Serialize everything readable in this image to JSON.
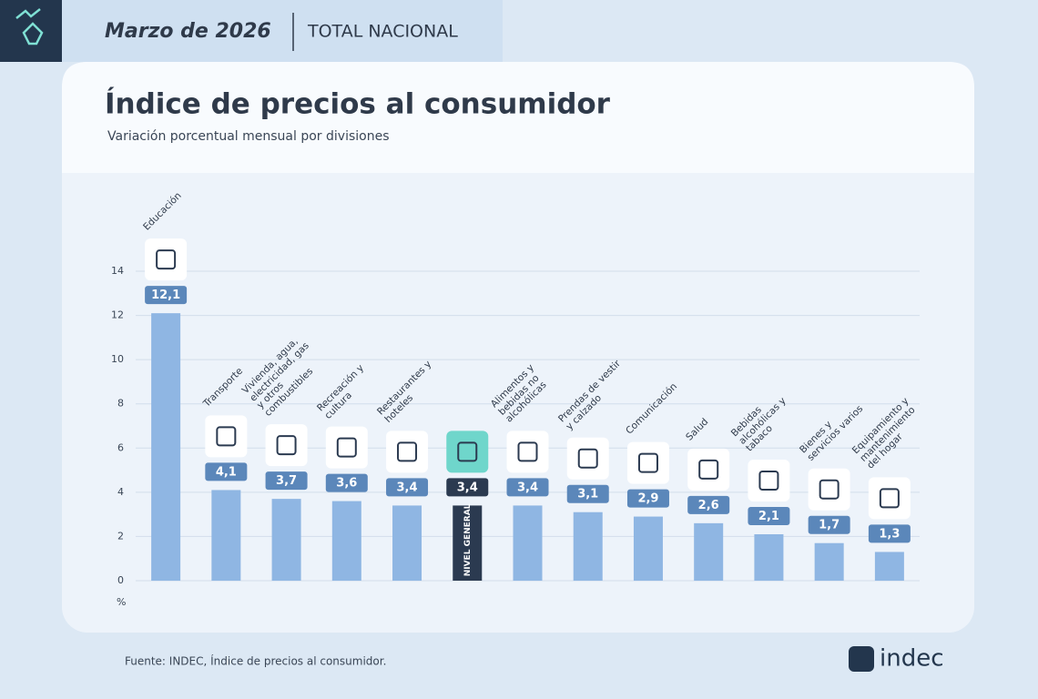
{
  "header": {
    "period": "Marzo de 2026",
    "scope": "TOTAL NACIONAL"
  },
  "chart_data": {
    "type": "bar",
    "title": "Índice de precios al consumidor",
    "subtitle": "Variación porcentual mensual por divisiones",
    "y_unit": "%",
    "categories": [
      "Educación",
      "Transporte",
      "Vivienda, agua, electricidad, gas y otros combustibles",
      "Recreación y cultura",
      "Restaurantes y hoteles",
      "NIVEL GENERAL",
      "Alimentos y bebidas no alcohólicas",
      "Prendas de vestir y calzado",
      "Comunicación",
      "Salud",
      "Bebidas alcohólicas y tabaco",
      "Bienes y servicios varios",
      "Equipamiento y mantenimiento del hogar"
    ],
    "values": [
      12.1,
      4.1,
      3.7,
      3.6,
      3.4,
      3.4,
      3.4,
      3.1,
      2.9,
      2.6,
      2.1,
      1.7,
      1.3
    ],
    "value_labels": [
      "12,1",
      "4,1",
      "3,7",
      "3,6",
      "3,4",
      "3,4",
      "3,4",
      "3,1",
      "2,9",
      "2,6",
      "2,1",
      "1,7",
      "1,3"
    ],
    "colors": [
      "#8fb6e3",
      "#8fb6e3",
      "#8fb6e3",
      "#8fb6e3",
      "#8fb6e3",
      "#2b3a50",
      "#8fb6e3",
      "#8fb6e3",
      "#8fb6e3",
      "#8fb6e3",
      "#8fb6e3",
      "#8fb6e3",
      "#8fb6e3"
    ],
    "ylim": [
      0,
      14
    ],
    "yticks": [
      0,
      2,
      4,
      6,
      8,
      10,
      12,
      14
    ],
    "grid": true
  },
  "footer": {
    "source": "Fuente: INDEC, Índice de precios al consumidor.",
    "logo": "indec"
  }
}
